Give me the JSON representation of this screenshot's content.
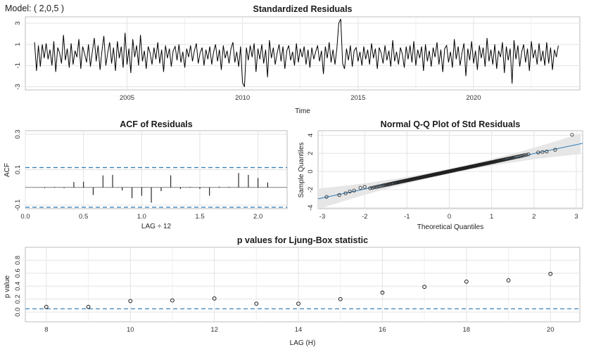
{
  "model_label": "Model: ( 2,0,5 )",
  "chart_data": [
    {
      "type": "line",
      "title": "Standardized Residuals",
      "xlabel": "Time",
      "ylabel": "",
      "xlim": [
        2000.6,
        2024.6
      ],
      "ylim": [
        -3.3,
        3.6
      ],
      "xticks": [
        2005,
        2010,
        2015,
        2020
      ],
      "yticks": [
        -3,
        -1,
        1,
        3
      ],
      "grid": true,
      "start_year": 2001.0,
      "freq": 12,
      "series": [
        {
          "values": [
            1.2,
            -1.5,
            0.9,
            -1.1,
            1.0,
            -0.3,
            1.1,
            -0.4,
            0.5,
            -1.0,
            1.3,
            -1.6,
            0.7,
            0.2,
            -0.8,
            1.9,
            -0.5,
            0.6,
            -1.2,
            1.1,
            -0.9,
            0.4,
            -0.2,
            1.5,
            -1.3,
            0.8,
            0.1,
            -0.7,
            1.0,
            -1.1,
            0.3,
            1.6,
            -0.6,
            0.9,
            -1.4,
            0.4,
            1.8,
            -1.0,
            0.2,
            1.2,
            -0.8,
            0.7,
            -1.5,
            1.3,
            -0.3,
            0.8,
            -1.2,
            2.1,
            -0.9,
            0.6,
            -1.7,
            1.5,
            -0.2,
            0.9,
            -1.0,
            1.9,
            -0.6,
            0.4,
            -1.3,
            0.8,
            0.2,
            -0.9,
            0.7,
            -0.4,
            1.2,
            -0.8,
            0.5,
            -1.6,
            0.9,
            -0.3,
            0.6,
            -1.1,
            0.4,
            0.8,
            -0.5,
            1.0,
            -0.7,
            0.3,
            -1.2,
            0.6,
            -0.2,
            0.9,
            -0.6,
            0.4,
            1.1,
            -0.8,
            0.2,
            0.7,
            -1.0,
            0.5,
            -0.4,
            0.8,
            -0.9,
            0.3,
            1.0,
            -0.6,
            0.5,
            -1.4,
            0.9,
            -0.3,
            0.4,
            -0.8,
            0.6,
            1.2,
            -0.7,
            0.3,
            -1.1,
            0.8,
            -2.6,
            -3.0,
            0.7,
            -0.5,
            0.9,
            -0.2,
            1.1,
            -1.6,
            0.6,
            -0.4,
            1.0,
            -0.8,
            0.5,
            -2.1,
            1.4,
            -0.3,
            0.7,
            -0.9,
            0.2,
            1.0,
            -0.6,
            0.8,
            -1.3,
            0.4,
            0.9,
            -0.5,
            0.3,
            -1.0,
            1.1,
            -0.7,
            0.6,
            -0.2,
            0.8,
            -0.9,
            0.5,
            -1.2,
            0.7,
            -0.4,
            0.3,
            0.9,
            -0.6,
            0.4,
            -1.8,
            0.8,
            -0.3,
            1.2,
            -0.7,
            0.5,
            -0.9,
            0.6,
            3.0,
            3.4,
            -0.8,
            -1.3,
            0.6,
            -0.5,
            0.9,
            -1.1,
            0.4,
            0.7,
            -0.6,
            0.3,
            -1.0,
            0.8,
            -0.4,
            0.5,
            -0.9,
            1.1,
            -0.3,
            0.6,
            -1.3,
            0.7,
            0.2,
            -0.8,
            0.9,
            -0.5,
            0.4,
            -1.1,
            1.4,
            -0.6,
            0.3,
            -0.9,
            0.7,
            0.1,
            -1.2,
            0.8,
            -0.4,
            0.9,
            -0.7,
            1.3,
            -1.0,
            0.5,
            -0.3,
            0.8,
            -1.5,
            1.0,
            -0.6,
            0.4,
            -1.1,
            0.7,
            -0.2,
            1.2,
            -0.9,
            0.5,
            -1.6,
            0.6,
            0.9,
            -0.7,
            0.3,
            -1.2,
            1.5,
            -0.4,
            0.8,
            -1.0,
            0.2,
            1.1,
            -2.0,
            0.6,
            -0.5,
            1.3,
            -0.8,
            0.4,
            -1.4,
            0.9,
            -0.3,
            0.7,
            -1.1,
            1.6,
            -0.6,
            0.5,
            -0.9,
            1.0,
            -1.3,
            0.4,
            -0.2,
            1.2,
            -1.7,
            0.8,
            -0.5,
            0.6,
            -2.7,
            1.4,
            -0.4,
            0.9,
            -1.1,
            0.3,
            1.0,
            -0.7,
            0.6,
            -1.5,
            1.3,
            -0.3,
            0.5,
            -0.9,
            1.1,
            -0.6,
            0.4,
            -1.0,
            1.2,
            -0.8,
            0.7,
            -1.4,
            0.5,
            -0.2,
            0.9
          ]
        }
      ]
    },
    {
      "type": "bar",
      "title": "ACF of Residuals",
      "xlabel": "LAG ÷ 12",
      "ylabel": "ACF",
      "xlim": [
        0.0,
        2.25
      ],
      "ylim": [
        -0.12,
        0.32
      ],
      "xticks": [
        "0.0",
        "0.5",
        "1.0",
        "1.5",
        "2.0"
      ],
      "yticks": [
        "-0.1",
        "0.1",
        "0.3"
      ],
      "conf_band": 0.112,
      "grid": true,
      "lags": [
        0.083,
        0.167,
        0.25,
        0.333,
        0.417,
        0.5,
        0.583,
        0.667,
        0.75,
        0.833,
        0.917,
        1.0,
        1.083,
        1.167,
        1.25,
        1.333,
        1.417,
        1.5,
        1.583,
        1.667,
        1.75,
        1.833,
        1.917,
        2.0,
        2.083
      ],
      "values": [
        0.0,
        -0.004,
        0.003,
        -0.004,
        0.03,
        0.032,
        -0.043,
        0.068,
        0.071,
        -0.017,
        -0.061,
        -0.047,
        -0.086,
        -0.021,
        0.068,
        -0.009,
        0.003,
        -0.009,
        -0.047,
        0.004,
        0.003,
        0.081,
        0.071,
        0.053,
        0.028
      ]
    },
    {
      "type": "scatter",
      "title": "Normal Q-Q Plot of Std Residuals",
      "xlabel": "Theoretical Quantiles",
      "ylabel": "Sample Quantiles",
      "xlim": [
        -3.1,
        3.15
      ],
      "ylim": [
        -4.1,
        4.5
      ],
      "xticks": [
        -3,
        -2,
        -1,
        0,
        1,
        2,
        3
      ],
      "yticks": [
        -4,
        -2,
        0,
        2,
        4
      ],
      "grid": true,
      "n": 276,
      "points": [
        [
          -2.9,
          -2.8
        ],
        [
          -2.6,
          -2.6
        ],
        [
          -2.45,
          -2.4
        ],
        [
          -2.35,
          -2.2
        ],
        [
          -2.25,
          -2.1
        ],
        [
          -2.1,
          -1.8
        ],
        [
          -2.0,
          -1.7
        ],
        [
          2.1,
          2.1
        ],
        [
          2.2,
          2.15
        ],
        [
          2.3,
          2.2
        ],
        [
          2.5,
          2.4
        ],
        [
          2.9,
          4.05
        ]
      ],
      "qq_line": {
        "slope": 0.98,
        "intercept": 0.02
      },
      "band_color": "#e6e6e6",
      "line_color": "#2b7bb9"
    },
    {
      "type": "scatter",
      "title": "p values for Ljung-Box statistic",
      "xlabel": "LAG (H)",
      "ylabel": "p value",
      "xlim": [
        7.5,
        20.7
      ],
      "ylim": [
        -0.15,
        1.0
      ],
      "xticks": [
        8,
        10,
        12,
        14,
        16,
        18,
        20
      ],
      "yticks": [
        "0.0",
        "0.2",
        "0.4",
        "0.6",
        "0.8"
      ],
      "sig_line": 0.05,
      "grid": true,
      "x": [
        8,
        9,
        10,
        11,
        12,
        13,
        14,
        15,
        16,
        17,
        18,
        19,
        20
      ],
      "y": [
        0.08,
        0.08,
        0.17,
        0.18,
        0.21,
        0.13,
        0.13,
        0.2,
        0.3,
        0.39,
        0.47,
        0.49,
        0.59
      ]
    }
  ]
}
